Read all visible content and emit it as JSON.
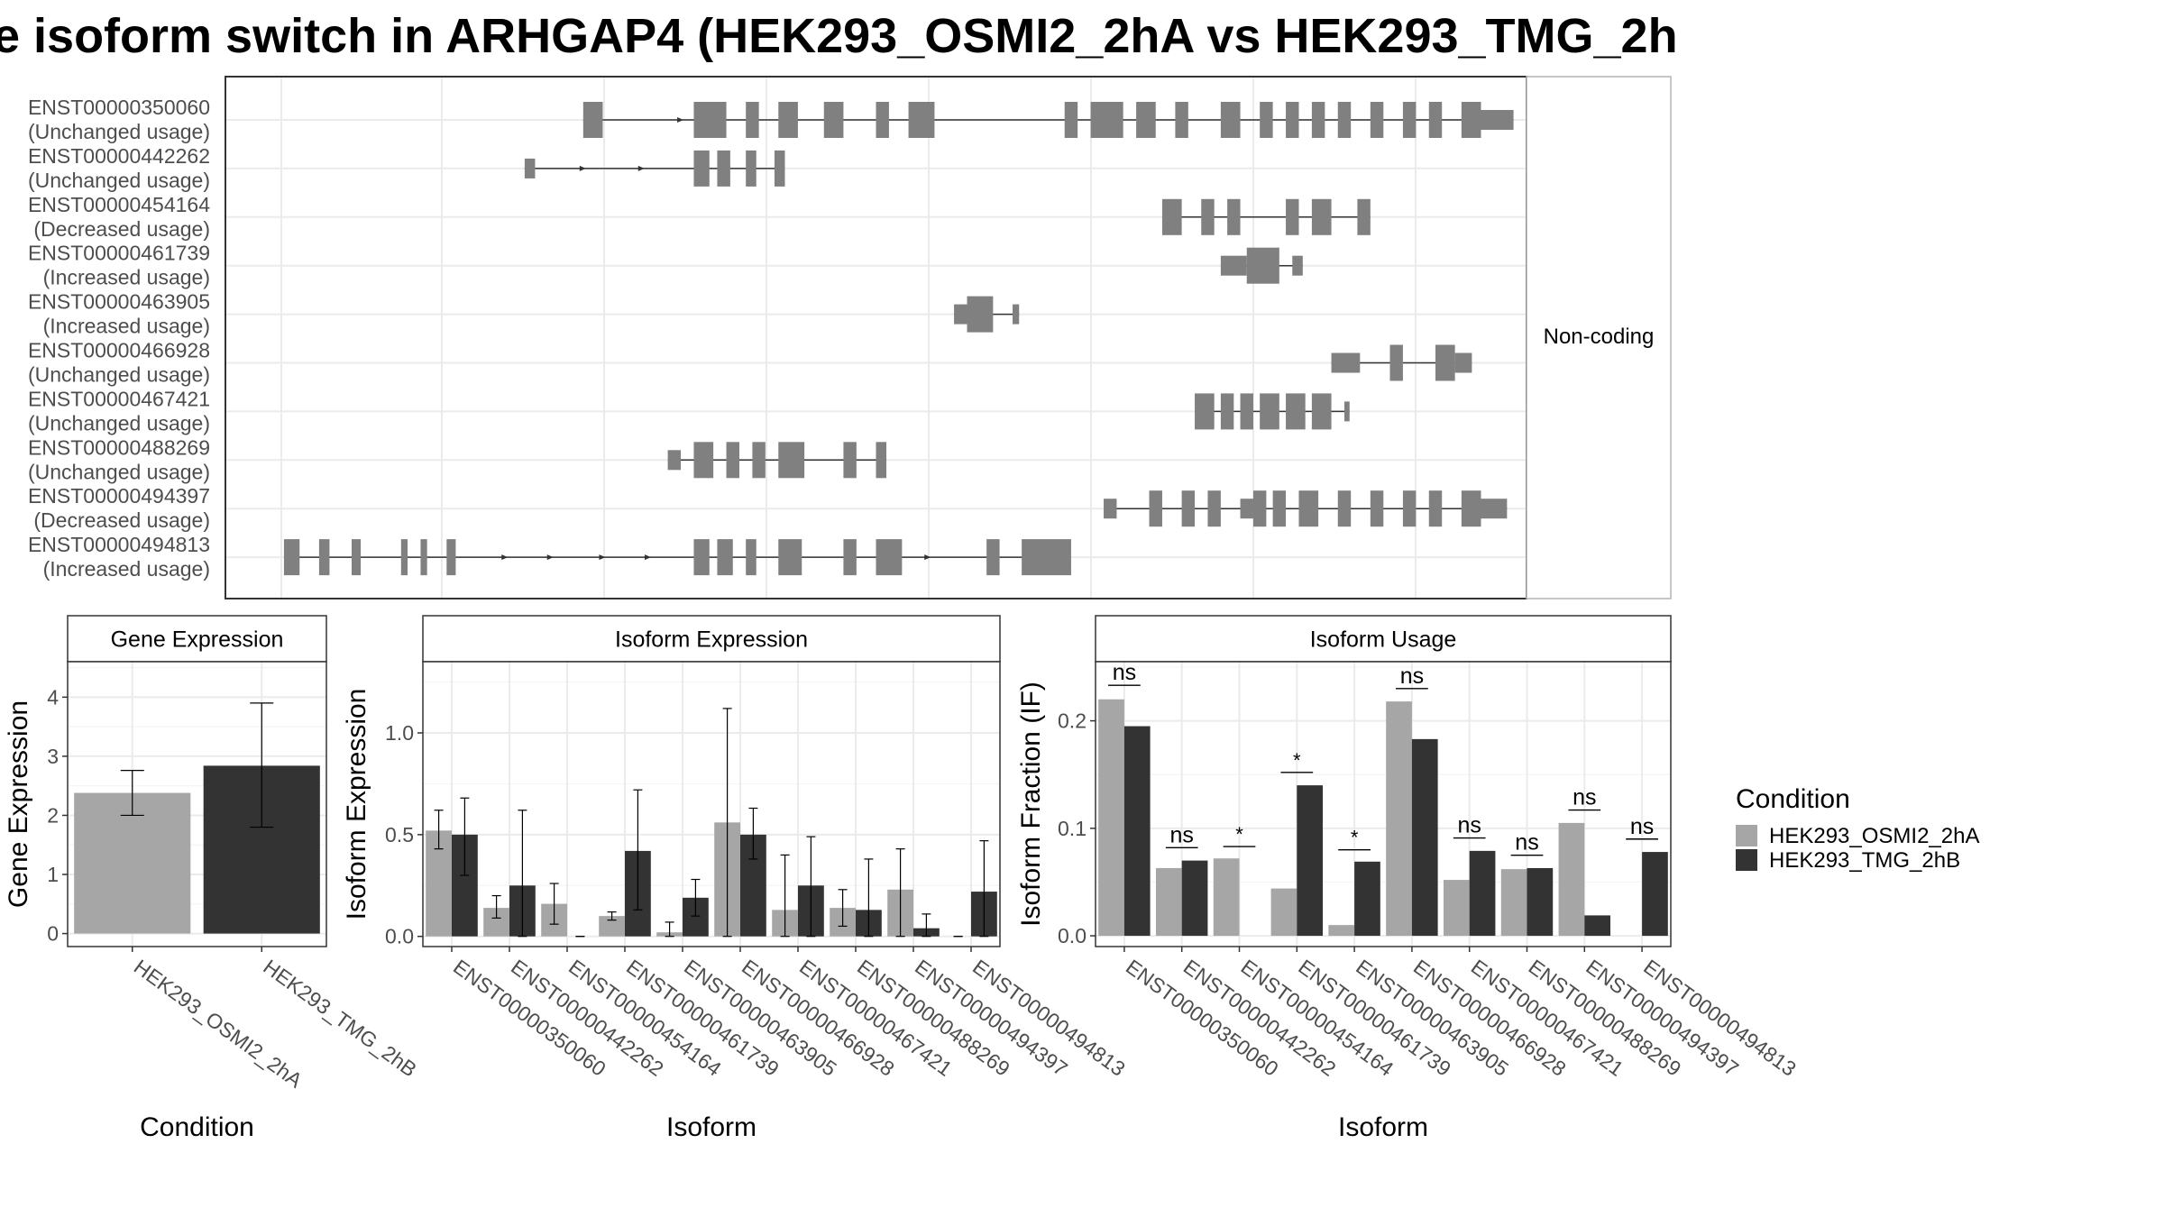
{
  "title": "e isoform switch in ARHGAP4 (HEK293_OSMI2_2hA vs HEK293_TMG_2h",
  "structure": {
    "facet_label": "Non-coding",
    "coord_range": [
      0,
      1000
    ],
    "isoforms": [
      {
        "id": "ENST00000350060",
        "usage": "(Unchanged usage)",
        "exons": [
          [
            275,
            290
          ],
          [
            360,
            385
          ],
          [
            400,
            410
          ],
          [
            425,
            440
          ],
          [
            460,
            475
          ],
          [
            500,
            510
          ],
          [
            525,
            545
          ],
          [
            645,
            655
          ],
          [
            665,
            690
          ],
          [
            700,
            715
          ],
          [
            730,
            740
          ],
          [
            765,
            780
          ],
          [
            795,
            805
          ],
          [
            815,
            825
          ],
          [
            835,
            845
          ],
          [
            855,
            865
          ],
          [
            880,
            890
          ],
          [
            905,
            915
          ],
          [
            925,
            935
          ],
          [
            950,
            965
          ],
          [
            965,
            990
          ]
        ],
        "arrows": [
          350,
          540
        ],
        "thin_ends": [
          [
            275,
            282
          ],
          [
            965,
            990
          ]
        ]
      },
      {
        "id": "ENST00000442262",
        "usage": "(Unchanged usage)",
        "exons": [
          [
            230,
            238
          ],
          [
            360,
            372
          ],
          [
            378,
            388
          ],
          [
            400,
            408
          ],
          [
            422,
            430
          ]
        ],
        "arrows": [
          275,
          320
        ],
        "thin_ends": [
          [
            230,
            238
          ]
        ]
      },
      {
        "id": "ENST00000454164",
        "usage": "(Decreased usage)",
        "exons": [
          [
            720,
            735
          ],
          [
            750,
            760
          ],
          [
            770,
            780
          ],
          [
            815,
            825
          ],
          [
            835,
            850
          ],
          [
            870,
            880
          ]
        ],
        "arrows": [],
        "thin_ends": []
      },
      {
        "id": "ENST00000461739",
        "usage": "(Increased usage)",
        "exons": [
          [
            765,
            785
          ],
          [
            785,
            810
          ],
          [
            820,
            828
          ]
        ],
        "arrows": [],
        "thin_ends": [
          [
            765,
            785
          ],
          [
            820,
            828
          ]
        ]
      },
      {
        "id": "ENST00000463905",
        "usage": "(Increased usage)",
        "exons": [
          [
            560,
            570
          ],
          [
            570,
            590
          ],
          [
            605,
            610
          ]
        ],
        "arrows": [],
        "thin_ends": [
          [
            560,
            570
          ],
          [
            605,
            610
          ]
        ]
      },
      {
        "id": "ENST00000466928",
        "usage": "(Unchanged usage)",
        "exons": [
          [
            850,
            872
          ],
          [
            895,
            905
          ],
          [
            930,
            945
          ],
          [
            945,
            958
          ]
        ],
        "arrows": [],
        "thin_ends": [
          [
            850,
            872
          ],
          [
            945,
            958
          ]
        ]
      },
      {
        "id": "ENST00000467421",
        "usage": "(Unchanged usage)",
        "exons": [
          [
            745,
            760
          ],
          [
            765,
            775
          ],
          [
            780,
            790
          ],
          [
            795,
            810
          ],
          [
            815,
            830
          ],
          [
            835,
            850
          ],
          [
            860,
            864
          ]
        ],
        "arrows": [],
        "thin_ends": [
          [
            860,
            864
          ]
        ]
      },
      {
        "id": "ENST00000488269",
        "usage": "(Unchanged usage)",
        "exons": [
          [
            340,
            350
          ],
          [
            360,
            375
          ],
          [
            385,
            395
          ],
          [
            405,
            415
          ],
          [
            425,
            445
          ],
          [
            475,
            485
          ],
          [
            500,
            508
          ]
        ],
        "arrows": [],
        "thin_ends": [
          [
            340,
            350
          ]
        ]
      },
      {
        "id": "ENST00000494397",
        "usage": "(Decreased usage)",
        "exons": [
          [
            675,
            685
          ],
          [
            710,
            720
          ],
          [
            735,
            745
          ],
          [
            755,
            765
          ],
          [
            780,
            790
          ],
          [
            790,
            800
          ],
          [
            805,
            815
          ],
          [
            825,
            840
          ],
          [
            855,
            865
          ],
          [
            880,
            890
          ],
          [
            905,
            915
          ],
          [
            925,
            935
          ],
          [
            950,
            965
          ],
          [
            965,
            985
          ]
        ],
        "arrows": [],
        "thin_ends": [
          [
            675,
            685
          ],
          [
            780,
            790
          ],
          [
            965,
            985
          ]
        ]
      },
      {
        "id": "ENST00000494813",
        "usage": "(Increased usage)",
        "exons": [
          [
            45,
            57
          ],
          [
            72,
            80
          ],
          [
            97,
            104
          ],
          [
            135,
            140
          ],
          [
            150,
            155
          ],
          [
            170,
            177
          ],
          [
            360,
            372
          ],
          [
            378,
            390
          ],
          [
            400,
            408
          ],
          [
            425,
            443
          ],
          [
            475,
            485
          ],
          [
            500,
            520
          ],
          [
            585,
            595
          ],
          [
            612,
            650
          ]
        ],
        "arrows": [
          215,
          250,
          290,
          325,
          540
        ],
        "thin_ends": []
      }
    ]
  },
  "chart_data": [
    {
      "type": "bar",
      "title": "Gene Expression",
      "xlabel": "Condition",
      "ylabel": "Gene Expression",
      "categories": [
        "HEK293_OSMI2_2hA",
        "HEK293_TMG_2hB"
      ],
      "values": [
        2.38,
        2.84
      ],
      "errors": [
        [
          2.0,
          2.76
        ],
        [
          1.8,
          3.9
        ]
      ],
      "colors": [
        "#a6a6a6",
        "#333333"
      ],
      "ylim": [
        -0.22,
        4.6
      ],
      "yticks": [
        0,
        1,
        2,
        3,
        4
      ]
    },
    {
      "type": "bar",
      "title": "Isoform Expression",
      "xlabel": "Isoform",
      "ylabel": "Isoform Expression",
      "categories": [
        "ENST00000350060",
        "ENST00000442262",
        "ENST00000454164",
        "ENST00000461739",
        "ENST00000463905",
        "ENST00000466928",
        "ENST00000467421",
        "ENST00000488269",
        "ENST00000494397",
        "ENST00000494813"
      ],
      "series": [
        {
          "name": "HEK293_OSMI2_2hA",
          "color": "#a6a6a6",
          "values": [
            0.52,
            0.14,
            0.16,
            0.1,
            0.02,
            0.56,
            0.13,
            0.14,
            0.23,
            0.0
          ],
          "errors": [
            [
              0.43,
              0.62
            ],
            [
              0.09,
              0.2
            ],
            [
              0.06,
              0.26
            ],
            [
              0.08,
              0.12
            ],
            [
              0.0,
              0.07
            ],
            [
              0.0,
              1.12
            ],
            [
              0.0,
              0.4
            ],
            [
              0.05,
              0.23
            ],
            [
              0.0,
              0.43
            ],
            [
              0.0,
              0.0
            ]
          ]
        },
        {
          "name": "HEK293_TMG_2hB",
          "color": "#333333",
          "values": [
            0.5,
            0.25,
            0.0,
            0.42,
            0.19,
            0.5,
            0.25,
            0.13,
            0.04,
            0.22
          ],
          "errors": [
            [
              0.3,
              0.68
            ],
            [
              0.0,
              0.62
            ],
            [
              0.0,
              0.0
            ],
            [
              0.13,
              0.72
            ],
            [
              0.1,
              0.28
            ],
            [
              0.38,
              0.63
            ],
            [
              0.0,
              0.49
            ],
            [
              0.0,
              0.38
            ],
            [
              0.0,
              0.11
            ],
            [
              0.0,
              0.47
            ]
          ]
        }
      ],
      "ylim": [
        -0.05,
        1.35
      ],
      "yticks": [
        0.0,
        0.5,
        1.0
      ],
      "ytick_labels": [
        "0.0",
        "0.5",
        "1.0"
      ]
    },
    {
      "type": "bar",
      "title": "Isoform Usage",
      "xlabel": "Isoform",
      "ylabel": "Isoform Fraction (IF)",
      "categories": [
        "ENST00000350060",
        "ENST00000442262",
        "ENST00000454164",
        "ENST00000461739",
        "ENST00000463905",
        "ENST00000466928",
        "ENST00000467421",
        "ENST00000488269",
        "ENST00000494397",
        "ENST00000494813"
      ],
      "series": [
        {
          "name": "HEK293_OSMI2_2hA",
          "color": "#a6a6a6",
          "values": [
            0.22,
            0.063,
            0.072,
            0.044,
            0.01,
            0.218,
            0.052,
            0.062,
            0.105,
            0.0
          ]
        },
        {
          "name": "HEK293_TMG_2hB",
          "color": "#333333",
          "values": [
            0.195,
            0.07,
            0.0,
            0.14,
            0.069,
            0.183,
            0.079,
            0.063,
            0.019,
            0.078
          ]
        }
      ],
      "significance": [
        {
          "label": "ns",
          "y": 0.233
        },
        {
          "label": "ns",
          "y": 0.082
        },
        {
          "label": "*",
          "y": 0.083
        },
        {
          "label": "*",
          "y": 0.152
        },
        {
          "label": "*",
          "y": 0.08
        },
        {
          "label": "ns",
          "y": 0.23
        },
        {
          "label": "ns",
          "y": 0.091
        },
        {
          "label": "ns",
          "y": 0.075
        },
        {
          "label": "ns",
          "y": 0.117
        },
        {
          "label": "ns",
          "y": 0.09
        }
      ],
      "ylim": [
        -0.01,
        0.255
      ],
      "yticks": [
        0.0,
        0.1,
        0.2
      ],
      "ytick_labels": [
        "0.0",
        "0.1",
        "0.2"
      ]
    }
  ],
  "legend": {
    "title": "Condition",
    "items": [
      {
        "label": "HEK293_OSMI2_2hA",
        "color": "#a6a6a6"
      },
      {
        "label": "HEK293_TMG_2hB",
        "color": "#333333"
      }
    ]
  }
}
